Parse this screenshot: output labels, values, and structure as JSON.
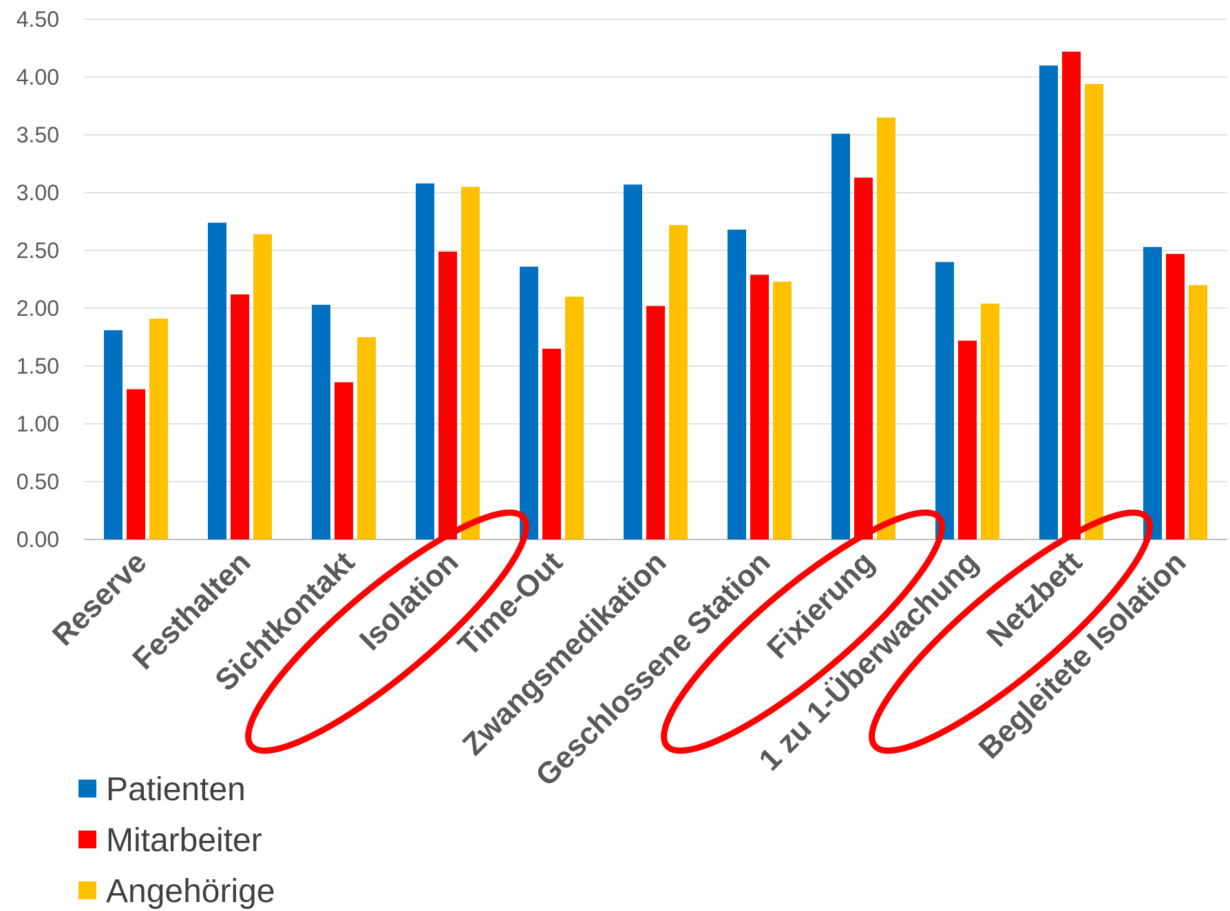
{
  "chart_data": {
    "type": "bar",
    "categories": [
      "Reserve",
      "Festhalten",
      "Sichtkontakt",
      "Isolation",
      "Time-Out",
      "Zwangsmedikation",
      "Geschlossene Station",
      "Fixierung",
      "1 zu 1-Überwachung",
      "Netzbett",
      "Begleitete Isolation"
    ],
    "series": [
      {
        "name": "Patienten",
        "color": "#0070c0",
        "values": [
          1.81,
          2.74,
          2.03,
          3.08,
          2.36,
          3.07,
          2.68,
          3.51,
          2.4,
          4.1,
          2.53
        ]
      },
      {
        "name": "Mitarbeiter",
        "color": "#ff0000",
        "values": [
          1.3,
          2.12,
          1.36,
          2.49,
          1.65,
          2.02,
          2.29,
          3.13,
          1.72,
          4.22,
          2.47
        ]
      },
      {
        "name": "Angehörige",
        "color": "#ffc000",
        "values": [
          1.91,
          2.64,
          1.75,
          3.05,
          2.1,
          2.72,
          2.23,
          3.65,
          2.04,
          3.94,
          2.2
        ]
      }
    ],
    "yticks": [
      "0.00",
      "0.50",
      "1.00",
      "1.50",
      "2.00",
      "2.50",
      "3.00",
      "3.50",
      "4.00",
      "4.50"
    ],
    "ylim": [
      0,
      4.5
    ],
    "grid": true,
    "legend": "bottom-left",
    "highlighted_categories": [
      "Isolation",
      "Fixierung",
      "Netzbett"
    ],
    "highlight_color": "#ff0000"
  }
}
